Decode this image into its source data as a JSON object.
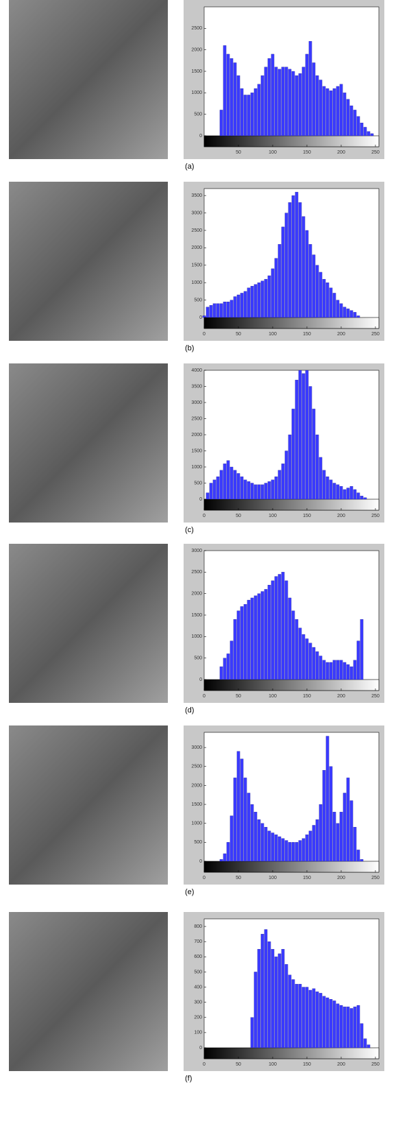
{
  "chart_data": [
    {
      "type": "bar",
      "caption": "(a)",
      "color": "#3b3bff",
      "x": [
        0,
        5,
        10,
        15,
        20,
        25,
        30,
        35,
        40,
        45,
        50,
        55,
        60,
        65,
        70,
        75,
        80,
        85,
        90,
        95,
        100,
        105,
        110,
        115,
        120,
        125,
        130,
        135,
        140,
        145,
        150,
        155,
        160,
        165,
        170,
        175,
        180,
        185,
        190,
        195,
        200,
        205,
        210,
        215,
        220,
        225,
        230,
        235,
        240,
        245,
        250,
        255
      ],
      "values": [
        0,
        0,
        0,
        0,
        0,
        600,
        2100,
        1900,
        1800,
        1700,
        1400,
        1100,
        950,
        950,
        1000,
        1100,
        1200,
        1400,
        1600,
        1800,
        1900,
        1600,
        1550,
        1600,
        1600,
        1550,
        1500,
        1400,
        1450,
        1600,
        1900,
        2200,
        1700,
        1400,
        1300,
        1150,
        1100,
        1050,
        1100,
        1150,
        1200,
        1000,
        850,
        700,
        600,
        450,
        300,
        200,
        100,
        50,
        0,
        0
      ],
      "xlim": [
        0,
        255
      ],
      "xticks": [
        50,
        100,
        150,
        200,
        250
      ],
      "ylim": [
        0,
        3000
      ],
      "yticks": [
        0,
        500,
        1000,
        1500,
        2000,
        2500
      ]
    },
    {
      "type": "bar",
      "caption": "(b)",
      "color": "#3b3bff",
      "x": [
        0,
        5,
        10,
        15,
        20,
        25,
        30,
        35,
        40,
        45,
        50,
        55,
        60,
        65,
        70,
        75,
        80,
        85,
        90,
        95,
        100,
        105,
        110,
        115,
        120,
        125,
        130,
        135,
        140,
        145,
        150,
        155,
        160,
        165,
        170,
        175,
        180,
        185,
        190,
        195,
        200,
        205,
        210,
        215,
        220,
        225,
        230,
        235,
        240,
        245,
        250,
        255
      ],
      "values": [
        50,
        300,
        350,
        400,
        400,
        400,
        450,
        450,
        500,
        600,
        650,
        700,
        750,
        850,
        900,
        950,
        1000,
        1050,
        1100,
        1200,
        1400,
        1700,
        2100,
        2600,
        3000,
        3300,
        3500,
        3600,
        3300,
        2900,
        2500,
        2100,
        1800,
        1500,
        1300,
        1100,
        1000,
        850,
        700,
        500,
        400,
        300,
        250,
        200,
        150,
        50,
        0,
        0,
        0,
        0,
        0,
        0
      ],
      "xlim": [
        0,
        255
      ],
      "xticks": [
        0,
        50,
        100,
        150,
        200,
        250
      ],
      "ylim": [
        0,
        3700
      ],
      "yticks": [
        0,
        500,
        1000,
        1500,
        2000,
        2500,
        3000,
        3500
      ]
    },
    {
      "type": "bar",
      "caption": "(c)",
      "color": "#3b3bff",
      "x": [
        0,
        5,
        10,
        15,
        20,
        25,
        30,
        35,
        40,
        45,
        50,
        55,
        60,
        65,
        70,
        75,
        80,
        85,
        90,
        95,
        100,
        105,
        110,
        115,
        120,
        125,
        130,
        135,
        140,
        145,
        150,
        155,
        160,
        165,
        170,
        175,
        180,
        185,
        190,
        195,
        200,
        205,
        210,
        215,
        220,
        225,
        230,
        235,
        240,
        245,
        250,
        255
      ],
      "values": [
        0,
        200,
        500,
        600,
        700,
        900,
        1100,
        1200,
        1000,
        900,
        800,
        700,
        600,
        550,
        500,
        450,
        450,
        450,
        500,
        550,
        600,
        700,
        900,
        1100,
        1500,
        2000,
        2800,
        3700,
        4000,
        3900,
        4000,
        3500,
        2800,
        2000,
        1300,
        900,
        700,
        600,
        500,
        450,
        400,
        300,
        350,
        400,
        300,
        200,
        100,
        50,
        0,
        0,
        0,
        0
      ],
      "xlim": [
        0,
        255
      ],
      "xticks": [
        0,
        50,
        100,
        150,
        200,
        250
      ],
      "ylim": [
        0,
        4000
      ],
      "yticks": [
        0,
        500,
        1000,
        1500,
        2000,
        2500,
        3000,
        3500,
        4000
      ]
    },
    {
      "type": "bar",
      "caption": "(d)",
      "color": "#3b3bff",
      "x": [
        0,
        5,
        10,
        15,
        20,
        25,
        30,
        35,
        40,
        45,
        50,
        55,
        60,
        65,
        70,
        75,
        80,
        85,
        90,
        95,
        100,
        105,
        110,
        115,
        120,
        125,
        130,
        135,
        140,
        145,
        150,
        155,
        160,
        165,
        170,
        175,
        180,
        185,
        190,
        195,
        200,
        205,
        210,
        215,
        220,
        225,
        230,
        235,
        240,
        245,
        250,
        255
      ],
      "values": [
        0,
        0,
        0,
        0,
        0,
        300,
        500,
        600,
        900,
        1400,
        1600,
        1700,
        1750,
        1850,
        1900,
        1950,
        2000,
        2050,
        2100,
        2200,
        2300,
        2400,
        2450,
        2500,
        2300,
        1900,
        1600,
        1400,
        1200,
        1050,
        950,
        850,
        750,
        650,
        550,
        450,
        400,
        400,
        450,
        450,
        450,
        400,
        350,
        300,
        450,
        900,
        1400,
        0,
        0,
        0,
        0,
        0
      ],
      "xlim": [
        0,
        255
      ],
      "xticks": [
        0,
        50,
        100,
        150,
        200,
        250
      ],
      "ylim": [
        0,
        3000
      ],
      "yticks": [
        0,
        500,
        1000,
        1500,
        2000,
        2500,
        3000
      ]
    },
    {
      "type": "bar",
      "caption": "(e)",
      "color": "#3b3bff",
      "x": [
        0,
        5,
        10,
        15,
        20,
        25,
        30,
        35,
        40,
        45,
        50,
        55,
        60,
        65,
        70,
        75,
        80,
        85,
        90,
        95,
        100,
        105,
        110,
        115,
        120,
        125,
        130,
        135,
        140,
        145,
        150,
        155,
        160,
        165,
        170,
        175,
        180,
        185,
        190,
        195,
        200,
        205,
        210,
        215,
        220,
        225,
        230,
        235,
        240,
        245,
        250,
        255
      ],
      "values": [
        0,
        0,
        0,
        0,
        0,
        50,
        200,
        500,
        1200,
        2200,
        2900,
        2700,
        2200,
        1800,
        1500,
        1300,
        1100,
        1000,
        900,
        800,
        750,
        700,
        650,
        600,
        550,
        500,
        500,
        500,
        550,
        600,
        700,
        800,
        950,
        1100,
        1500,
        2400,
        3300,
        2500,
        1300,
        1000,
        1300,
        1800,
        2200,
        1600,
        900,
        300,
        50,
        0,
        0,
        0,
        0,
        0
      ],
      "xlim": [
        0,
        255
      ],
      "xticks": [
        0,
        50,
        100,
        150,
        200,
        250
      ],
      "ylim": [
        0,
        3400
      ],
      "yticks": [
        0,
        500,
        1000,
        1500,
        2000,
        2500,
        3000
      ]
    },
    {
      "type": "bar",
      "caption": "(f)",
      "color": "#3b3bff",
      "x": [
        0,
        5,
        10,
        15,
        20,
        25,
        30,
        35,
        40,
        45,
        50,
        55,
        60,
        65,
        70,
        75,
        80,
        85,
        90,
        95,
        100,
        105,
        110,
        115,
        120,
        125,
        130,
        135,
        140,
        145,
        150,
        155,
        160,
        165,
        170,
        175,
        180,
        185,
        190,
        195,
        200,
        205,
        210,
        215,
        220,
        225,
        230,
        235,
        240,
        245,
        250,
        255
      ],
      "values": [
        0,
        0,
        0,
        0,
        0,
        0,
        0,
        0,
        0,
        0,
        0,
        0,
        0,
        0,
        200,
        500,
        650,
        750,
        780,
        700,
        650,
        600,
        620,
        650,
        550,
        480,
        450,
        420,
        420,
        400,
        400,
        380,
        390,
        370,
        360,
        340,
        330,
        320,
        310,
        290,
        280,
        270,
        270,
        260,
        270,
        280,
        160,
        60,
        20,
        0,
        0,
        0
      ],
      "xlim": [
        0,
        255
      ],
      "xticks": [
        0,
        50,
        100,
        150,
        200,
        250
      ],
      "ylim": [
        0,
        850
      ],
      "yticks": [
        0,
        100,
        200,
        300,
        400,
        500,
        600,
        700,
        800
      ]
    }
  ]
}
